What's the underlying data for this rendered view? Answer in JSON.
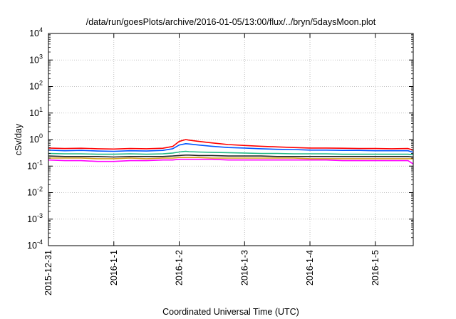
{
  "chart_data": {
    "type": "line",
    "title": "/data/run/goesPlots/archive/2016-01-05/13:00/flux/../bryn/5daysMoon.plot",
    "xlabel": "Coordinated Universal Time (UTC)",
    "ylabel": "cSv/day",
    "yscale": "log",
    "ylim": [
      0.0001,
      10000
    ],
    "xlim": [
      0,
      5.58
    ],
    "grid": true,
    "x_ticks": [
      {
        "value": 0,
        "label": "2015-12-31"
      },
      {
        "value": 1,
        "label": "2016-1-1"
      },
      {
        "value": 2,
        "label": "2016-1-2"
      },
      {
        "value": 3,
        "label": "2016-1-3"
      },
      {
        "value": 4,
        "label": "2016-1-4"
      },
      {
        "value": 5,
        "label": "2016-1-5"
      }
    ],
    "y_ticks": [
      {
        "value": 0.0001,
        "base": "10",
        "exp": "-4"
      },
      {
        "value": 0.001,
        "base": "10",
        "exp": "-3"
      },
      {
        "value": 0.01,
        "base": "10",
        "exp": "-2"
      },
      {
        "value": 0.1,
        "base": "10",
        "exp": "-1"
      },
      {
        "value": 1,
        "base": "10",
        "exp": "0"
      },
      {
        "value": 10,
        "base": "10",
        "exp": "1"
      },
      {
        "value": 100,
        "base": "10",
        "exp": "2"
      },
      {
        "value": 1000,
        "base": "10",
        "exp": "3"
      },
      {
        "value": 10000,
        "base": "10",
        "exp": "4"
      }
    ],
    "x": [
      0.0,
      0.25,
      0.5,
      0.75,
      1.0,
      1.25,
      1.5,
      1.75,
      1.9,
      2.0,
      2.1,
      2.15,
      2.3,
      2.5,
      2.75,
      3.0,
      3.25,
      3.5,
      3.75,
      4.0,
      4.25,
      4.5,
      4.75,
      5.0,
      5.25,
      5.5,
      5.58
    ],
    "series": [
      {
        "color": "#ff0000",
        "values": [
          0.48,
          0.46,
          0.47,
          0.45,
          0.44,
          0.46,
          0.45,
          0.47,
          0.55,
          0.85,
          1.0,
          0.95,
          0.85,
          0.75,
          0.65,
          0.6,
          0.56,
          0.53,
          0.5,
          0.48,
          0.48,
          0.47,
          0.46,
          0.46,
          0.45,
          0.46,
          0.4
        ]
      },
      {
        "color": "#0055ff",
        "values": [
          0.4,
          0.38,
          0.39,
          0.37,
          0.36,
          0.38,
          0.37,
          0.39,
          0.45,
          0.62,
          0.7,
          0.68,
          0.62,
          0.56,
          0.5,
          0.48,
          0.45,
          0.43,
          0.42,
          0.4,
          0.4,
          0.39,
          0.39,
          0.38,
          0.38,
          0.38,
          0.33
        ]
      },
      {
        "color": "#22bb88",
        "values": [
          0.3,
          0.29,
          0.29,
          0.28,
          0.28,
          0.29,
          0.28,
          0.29,
          0.31,
          0.34,
          0.36,
          0.35,
          0.34,
          0.33,
          0.32,
          0.31,
          0.3,
          0.3,
          0.29,
          0.29,
          0.29,
          0.28,
          0.28,
          0.28,
          0.28,
          0.28,
          0.27
        ]
      },
      {
        "color": "#222222",
        "values": [
          0.24,
          0.23,
          0.23,
          0.23,
          0.22,
          0.23,
          0.23,
          0.23,
          0.24,
          0.25,
          0.26,
          0.26,
          0.25,
          0.25,
          0.24,
          0.24,
          0.24,
          0.23,
          0.23,
          0.23,
          0.23,
          0.23,
          0.23,
          0.23,
          0.23,
          0.23,
          0.22
        ]
      },
      {
        "color": "#d4a017",
        "values": [
          0.2,
          0.2,
          0.2,
          0.19,
          0.19,
          0.2,
          0.19,
          0.2,
          0.2,
          0.21,
          0.21,
          0.21,
          0.21,
          0.2,
          0.2,
          0.2,
          0.2,
          0.2,
          0.2,
          0.19,
          0.19,
          0.19,
          0.19,
          0.19,
          0.19,
          0.19,
          0.19
        ]
      },
      {
        "color": "#ff00ff",
        "values": [
          0.17,
          0.16,
          0.16,
          0.15,
          0.15,
          0.16,
          0.16,
          0.17,
          0.17,
          0.18,
          0.18,
          0.18,
          0.18,
          0.18,
          0.17,
          0.17,
          0.17,
          0.17,
          0.17,
          0.17,
          0.17,
          0.16,
          0.16,
          0.16,
          0.16,
          0.16,
          0.12
        ]
      }
    ]
  }
}
